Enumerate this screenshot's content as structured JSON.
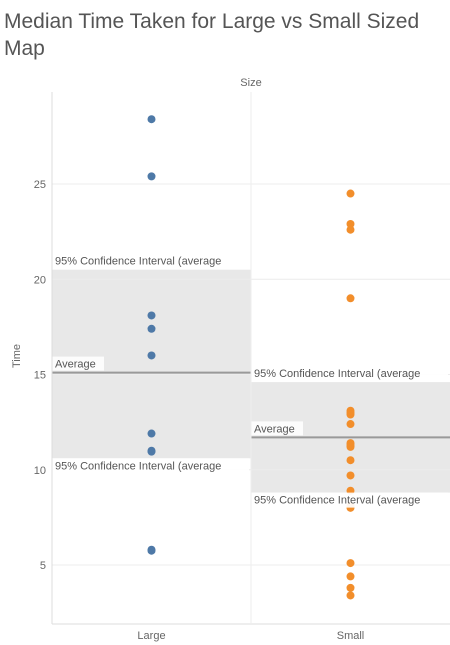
{
  "title": "Median Time Taken for Large vs Small Sized Map",
  "chart_data": {
    "type": "scatter",
    "header": "Size",
    "ylabel": "Time",
    "ylim": [
      2,
      30
    ],
    "yticks": [
      5,
      10,
      15,
      20,
      25
    ],
    "categories": [
      "Large",
      "Small"
    ],
    "colors": {
      "Large": "#4e79a7",
      "Small": "#f28e2b"
    },
    "series": [
      {
        "category": "Large",
        "values": [
          28.4,
          25.4,
          18.1,
          17.4,
          16.0,
          11.9,
          11.0,
          10.95,
          5.8,
          5.75
        ],
        "average": 15.1,
        "ci_lower": 10.6,
        "ci_upper": 20.5,
        "average_label": "Average",
        "ci_upper_label": "95% Confidence Interval (average",
        "ci_lower_label": "95% Confidence Interval (average"
      },
      {
        "category": "Small",
        "values": [
          24.5,
          22.9,
          22.6,
          19.0,
          13.1,
          13.0,
          12.9,
          12.4,
          11.4,
          11.3,
          11.2,
          10.5,
          9.7,
          8.9,
          8.1,
          8.0,
          5.1,
          4.4,
          3.8,
          3.4
        ],
        "average": 11.7,
        "ci_lower": 8.8,
        "ci_upper": 14.6,
        "average_label": "Average",
        "ci_upper_label": "95% Confidence Interval (average",
        "ci_lower_label": "95% Confidence Interval (average"
      }
    ]
  }
}
